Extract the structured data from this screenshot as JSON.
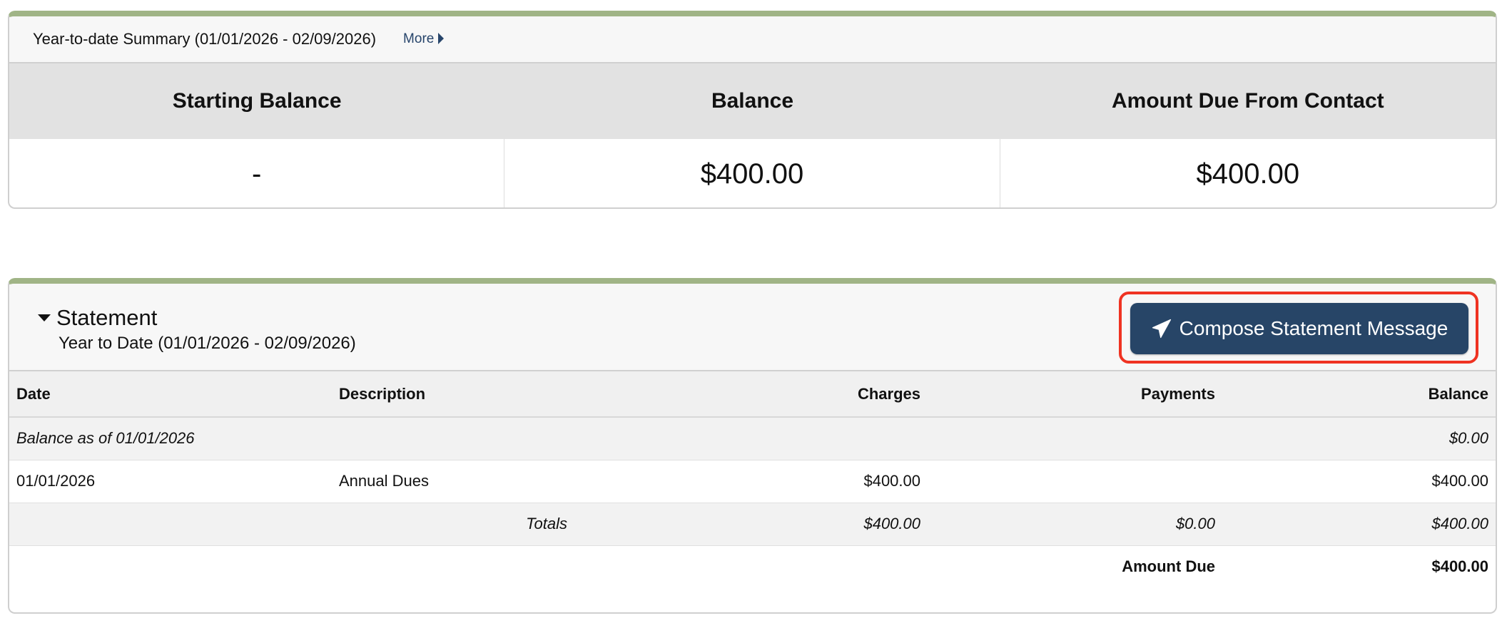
{
  "summary": {
    "title": "Year-to-date Summary (01/01/2026 - 02/09/2026)",
    "more_label": "More",
    "headers": [
      "Starting Balance",
      "Balance",
      "Amount Due From Contact"
    ],
    "values": [
      "-",
      "$400.00",
      "$400.00"
    ]
  },
  "statement": {
    "title": "Statement",
    "subtitle": "Year to Date (01/01/2026 - 02/09/2026)",
    "compose_button": "Compose Statement Message",
    "columns": [
      "Date",
      "Description",
      "Charges",
      "Payments",
      "Balance"
    ],
    "opening": {
      "label": "Balance as of 01/01/2026",
      "balance": "$0.00"
    },
    "rows": [
      {
        "date": "01/01/2026",
        "description": "Annual Dues",
        "charges": "$400.00",
        "payments": "",
        "balance": "$400.00"
      }
    ],
    "totals": {
      "label": "Totals",
      "charges": "$400.00",
      "payments": "$0.00",
      "balance": "$400.00"
    },
    "amount_due": {
      "label": "Amount Due",
      "value": "$400.00"
    }
  },
  "colors": {
    "accent_border": "#a0b486",
    "button": "#274567",
    "highlight": "#ef3322"
  }
}
